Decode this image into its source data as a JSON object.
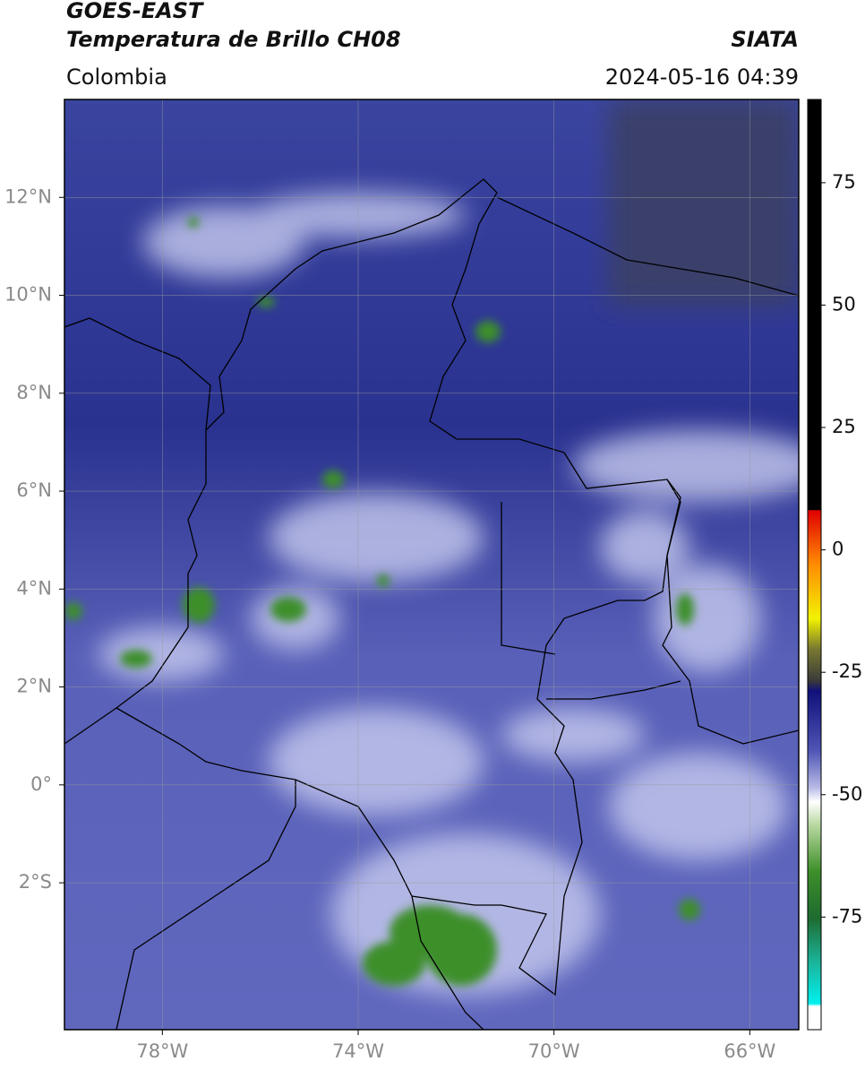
{
  "header": {
    "satellite": "GOES-EAST",
    "product": "Temperatura de Brillo CH08",
    "source": "SIATA",
    "region": "Colombia",
    "datetime": "2024-05-16 04:39"
  },
  "map": {
    "xlim": [
      -80,
      -65
    ],
    "ylim": [
      -5,
      14
    ],
    "xticks": [
      {
        "value": -78,
        "label": "78°W"
      },
      {
        "value": -74,
        "label": "74°W"
      },
      {
        "value": -70,
        "label": "70°W"
      },
      {
        "value": -66,
        "label": "66°W"
      }
    ],
    "yticks": [
      {
        "value": 12,
        "label": "12°N"
      },
      {
        "value": 10,
        "label": "10°N"
      },
      {
        "value": 8,
        "label": "8°N"
      },
      {
        "value": 6,
        "label": "6°N"
      },
      {
        "value": 4,
        "label": "4°N"
      },
      {
        "value": 2,
        "label": "2°N"
      },
      {
        "value": 0,
        "label": "0°"
      },
      {
        "value": -2,
        "label": "2°S"
      }
    ],
    "grid": true
  },
  "colorbar": {
    "lim": [
      -98,
      92
    ],
    "ticks": [
      75,
      50,
      25,
      0,
      -25,
      -50,
      -75
    ]
  }
}
